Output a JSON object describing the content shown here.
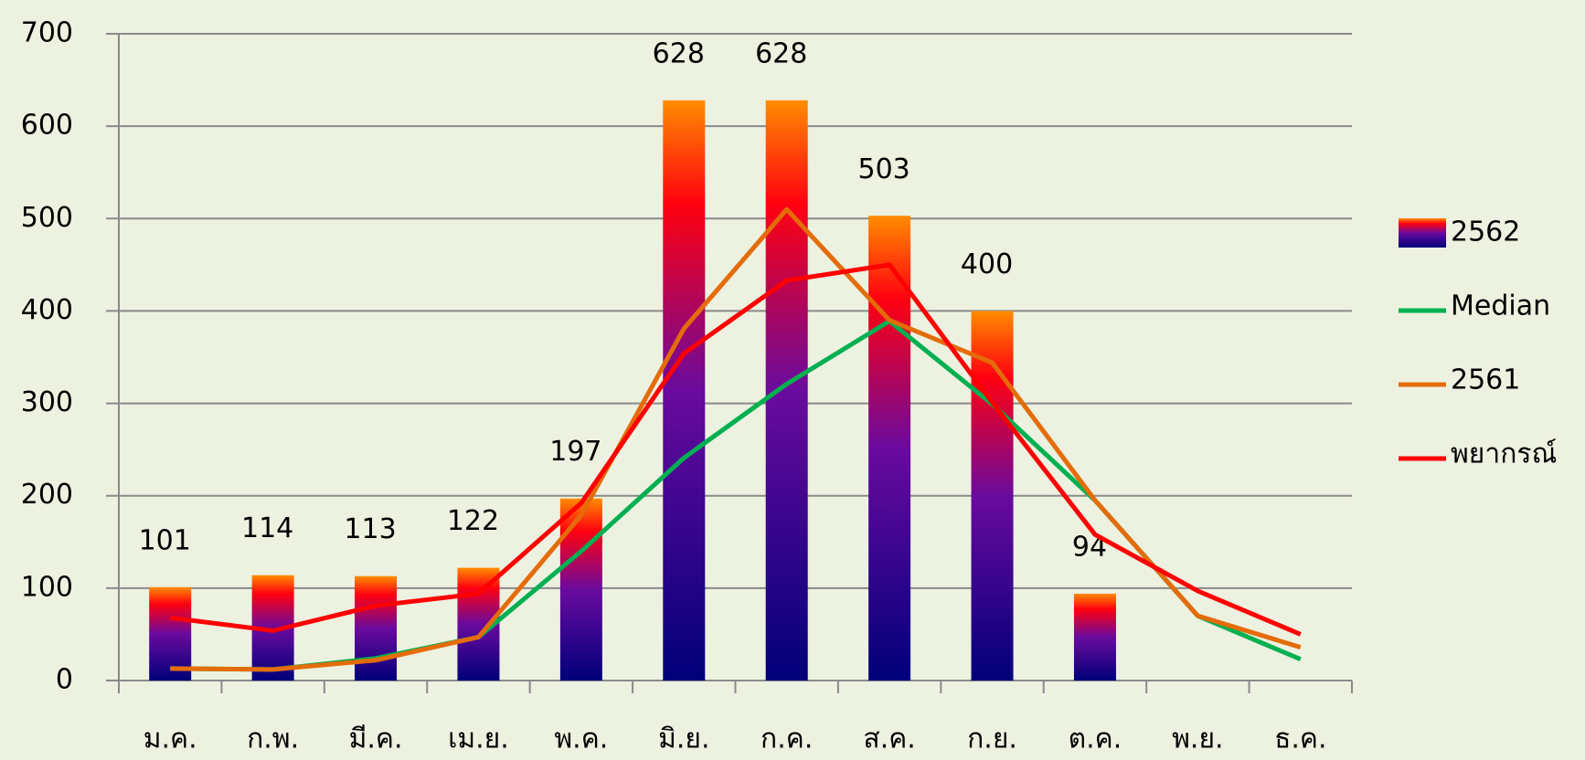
{
  "chart_data": {
    "type": "combo",
    "categories": [
      "ม.ค.",
      "ก.พ.",
      "มี.ค.",
      "เม.ย.",
      "พ.ค.",
      "มิ.ย.",
      "ก.ค.",
      "ส.ค.",
      "ก.ย.",
      "ต.ค.",
      "พ.ย.",
      "ธ.ค."
    ],
    "ylim": [
      0,
      700
    ],
    "yticks": [
      0,
      100,
      200,
      300,
      400,
      500,
      600,
      700
    ],
    "grid": true,
    "legend": "right",
    "series": [
      {
        "name": "2562",
        "type": "bar",
        "gradient": [
          "#00007a",
          "#6a0a9e",
          "#ff0010",
          "#ff8c00"
        ],
        "values": [
          101,
          114,
          113,
          122,
          197,
          628,
          628,
          503,
          400,
          94,
          null,
          null
        ]
      },
      {
        "name": "Median",
        "type": "line",
        "color": "#00b050",
        "values": [
          13,
          12,
          24,
          47,
          140,
          241,
          321,
          389,
          299,
          195,
          70,
          23
        ]
      },
      {
        "name": "2561",
        "type": "line",
        "color": "#e46c0a",
        "values": [
          13,
          12,
          22,
          47,
          179,
          381,
          510,
          390,
          344,
          195,
          70,
          36
        ]
      },
      {
        "name": "พยากรณ์",
        "type": "line",
        "color": "#ff0000",
        "values": [
          68,
          54,
          81,
          94,
          192,
          354,
          433,
          450,
          301,
          158,
          97,
          50
        ]
      }
    ]
  }
}
